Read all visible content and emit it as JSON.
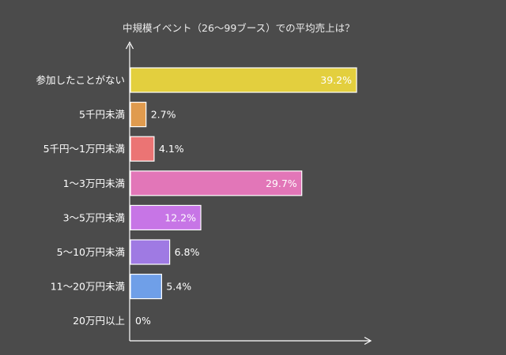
{
  "chart_data": {
    "type": "bar",
    "orientation": "horizontal",
    "title": "中規模イベント（26〜99ブース）での平均売上は？",
    "xlabel": "",
    "ylabel": "",
    "xlim": [
      0,
      39.2
    ],
    "grid": false,
    "categories": [
      "参加したことがない",
      "5千円未満",
      "5千円〜1万円未満",
      "1〜3万円未満",
      "3〜5万円未満",
      "5〜10万円未満",
      "11〜20万円未満",
      "20万円以上"
    ],
    "values": [
      39.2,
      2.7,
      4.1,
      29.7,
      12.2,
      6.8,
      5.4,
      0
    ],
    "value_labels": [
      "39.2%",
      "2.7%",
      "4.1%",
      "29.7%",
      "12.2%",
      "6.8%",
      "5.4%",
      "0%"
    ],
    "colors": [
      "#e3cf3e",
      "#e09b4e",
      "#eb7474",
      "#e276b8",
      "#c775e6",
      "#9f7ae3",
      "#6f9fe8",
      "#7fc97f"
    ]
  }
}
